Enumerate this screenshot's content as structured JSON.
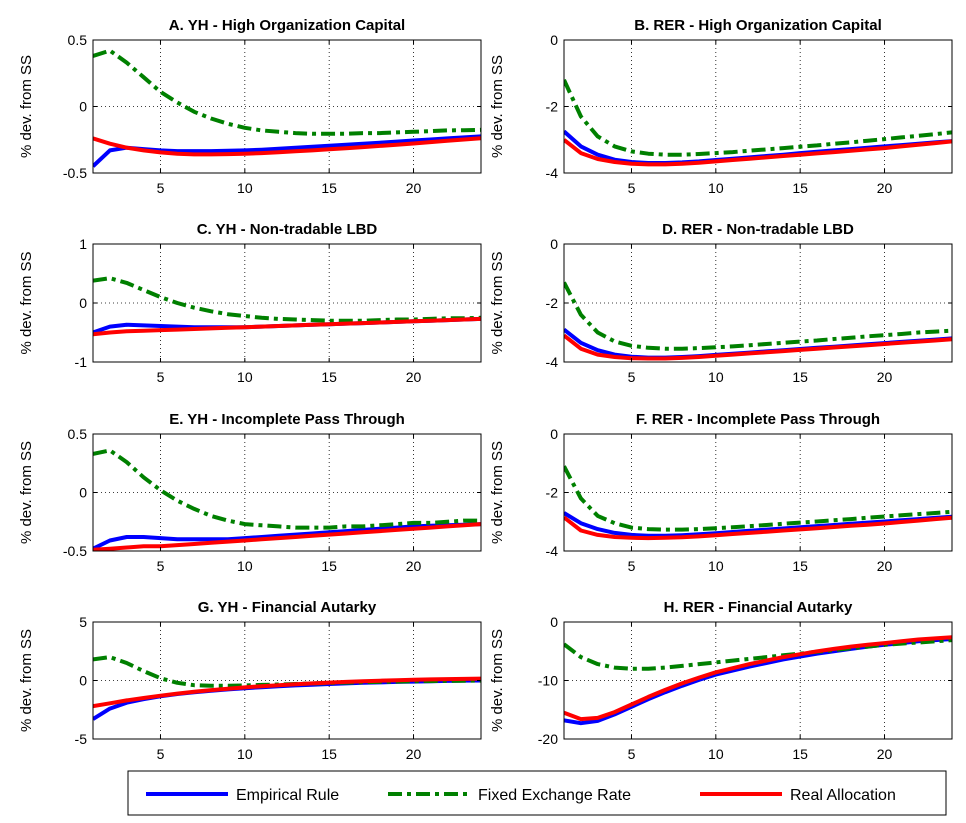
{
  "colors": {
    "empirical": "#0000ff",
    "fixed": "#008000",
    "real": "#ff0000"
  },
  "legend": {
    "empirical": "Empirical Rule",
    "fixed": "Fixed Exchange Rate",
    "real": "Real Allocation"
  },
  "chart_data": [
    {
      "type": "line",
      "panel": "A",
      "title": "A. YH - High Organization Capital",
      "ylabel": "% dev. from SS",
      "xlim": [
        1,
        24
      ],
      "ylim": [
        -0.5,
        0.5
      ],
      "xticks": [
        5,
        10,
        15,
        20
      ],
      "yticks": [
        -0.5,
        0,
        0.5
      ],
      "yticklabels": [
        "-0.5",
        "0",
        "0.5"
      ],
      "grid": true,
      "x": [
        1,
        2,
        3,
        4,
        5,
        6,
        7,
        8,
        9,
        10,
        11,
        12,
        13,
        14,
        15,
        16,
        17,
        18,
        19,
        20,
        21,
        22,
        23,
        24
      ],
      "series": [
        {
          "key": "empirical",
          "values": [
            -0.45,
            -0.33,
            -0.31,
            -0.32,
            -0.33,
            -0.335,
            -0.335,
            -0.335,
            -0.333,
            -0.33,
            -0.325,
            -0.318,
            -0.31,
            -0.302,
            -0.295,
            -0.288,
            -0.28,
            -0.272,
            -0.264,
            -0.256,
            -0.248,
            -0.24,
            -0.232,
            -0.225
          ]
        },
        {
          "key": "fixed",
          "values": [
            0.38,
            0.42,
            0.33,
            0.22,
            0.11,
            0.03,
            -0.04,
            -0.09,
            -0.13,
            -0.16,
            -0.18,
            -0.19,
            -0.2,
            -0.205,
            -0.205,
            -0.205,
            -0.2,
            -0.2,
            -0.195,
            -0.19,
            -0.185,
            -0.18,
            -0.178,
            -0.175
          ]
        },
        {
          "key": "real",
          "values": [
            -0.24,
            -0.28,
            -0.31,
            -0.33,
            -0.345,
            -0.355,
            -0.36,
            -0.36,
            -0.358,
            -0.355,
            -0.35,
            -0.344,
            -0.337,
            -0.33,
            -0.322,
            -0.314,
            -0.305,
            -0.296,
            -0.287,
            -0.278,
            -0.268,
            -0.258,
            -0.248,
            -0.238
          ]
        }
      ]
    },
    {
      "type": "line",
      "panel": "B",
      "title": "B. RER - High Organization Capital",
      "ylabel": "% dev. from SS",
      "xlim": [
        1,
        24
      ],
      "ylim": [
        -4,
        0
      ],
      "xticks": [
        5,
        10,
        15,
        20
      ],
      "yticks": [
        -4,
        -2,
        0
      ],
      "yticklabels": [
        "-4",
        "-2",
        "0"
      ],
      "grid": true,
      "x": [
        1,
        2,
        3,
        4,
        5,
        6,
        7,
        8,
        9,
        10,
        11,
        12,
        13,
        14,
        15,
        16,
        17,
        18,
        19,
        20,
        21,
        22,
        23,
        24
      ],
      "series": [
        {
          "key": "empirical",
          "values": [
            -2.75,
            -3.2,
            -3.45,
            -3.6,
            -3.67,
            -3.7,
            -3.7,
            -3.68,
            -3.65,
            -3.61,
            -3.57,
            -3.53,
            -3.49,
            -3.45,
            -3.4,
            -3.36,
            -3.32,
            -3.28,
            -3.24,
            -3.2,
            -3.16,
            -3.12,
            -3.08,
            -3.04
          ]
        },
        {
          "key": "fixed",
          "values": [
            -1.2,
            -2.3,
            -2.9,
            -3.2,
            -3.35,
            -3.42,
            -3.45,
            -3.45,
            -3.43,
            -3.4,
            -3.37,
            -3.33,
            -3.29,
            -3.25,
            -3.21,
            -3.17,
            -3.12,
            -3.08,
            -3.03,
            -2.98,
            -2.93,
            -2.88,
            -2.83,
            -2.78
          ]
        },
        {
          "key": "real",
          "values": [
            -3.0,
            -3.4,
            -3.58,
            -3.67,
            -3.72,
            -3.74,
            -3.74,
            -3.72,
            -3.69,
            -3.65,
            -3.61,
            -3.57,
            -3.53,
            -3.49,
            -3.45,
            -3.41,
            -3.37,
            -3.33,
            -3.29,
            -3.25,
            -3.2,
            -3.15,
            -3.1,
            -3.05
          ]
        }
      ]
    },
    {
      "type": "line",
      "panel": "C",
      "title": "C. YH - Non-tradable LBD",
      "ylabel": "% dev. from SS",
      "xlim": [
        1,
        24
      ],
      "ylim": [
        -1,
        1
      ],
      "xticks": [
        5,
        10,
        15,
        20
      ],
      "yticks": [
        -1,
        0,
        1
      ],
      "yticklabels": [
        "-1",
        "0",
        "1"
      ],
      "grid": true,
      "x": [
        1,
        2,
        3,
        4,
        5,
        6,
        7,
        8,
        9,
        10,
        11,
        12,
        13,
        14,
        15,
        16,
        17,
        18,
        19,
        20,
        21,
        22,
        23,
        24
      ],
      "series": [
        {
          "key": "empirical",
          "values": [
            -0.5,
            -0.4,
            -0.37,
            -0.38,
            -0.39,
            -0.4,
            -0.41,
            -0.41,
            -0.41,
            -0.41,
            -0.4,
            -0.39,
            -0.38,
            -0.37,
            -0.36,
            -0.35,
            -0.34,
            -0.33,
            -0.32,
            -0.31,
            -0.3,
            -0.29,
            -0.28,
            -0.27
          ]
        },
        {
          "key": "fixed",
          "values": [
            0.38,
            0.42,
            0.34,
            0.22,
            0.1,
            0.0,
            -0.08,
            -0.14,
            -0.19,
            -0.22,
            -0.25,
            -0.27,
            -0.28,
            -0.29,
            -0.3,
            -0.3,
            -0.3,
            -0.29,
            -0.28,
            -0.28,
            -0.27,
            -0.26,
            -0.26,
            -0.25
          ]
        },
        {
          "key": "real",
          "values": [
            -0.53,
            -0.5,
            -0.48,
            -0.47,
            -0.46,
            -0.45,
            -0.44,
            -0.43,
            -0.42,
            -0.41,
            -0.4,
            -0.39,
            -0.38,
            -0.37,
            -0.36,
            -0.35,
            -0.34,
            -0.33,
            -0.32,
            -0.31,
            -0.3,
            -0.29,
            -0.28,
            -0.27
          ]
        }
      ]
    },
    {
      "type": "line",
      "panel": "D",
      "title": "D. RER - Non-tradable LBD",
      "ylabel": "% dev. from SS",
      "xlim": [
        1,
        24
      ],
      "ylim": [
        -4,
        0
      ],
      "xticks": [
        5,
        10,
        15,
        20
      ],
      "yticks": [
        -4,
        -2,
        0
      ],
      "yticklabels": [
        "-4",
        "-2",
        "0"
      ],
      "grid": true,
      "x": [
        1,
        2,
        3,
        4,
        5,
        6,
        7,
        8,
        9,
        10,
        11,
        12,
        13,
        14,
        15,
        16,
        17,
        18,
        19,
        20,
        21,
        22,
        23,
        24
      ],
      "series": [
        {
          "key": "empirical",
          "values": [
            -2.9,
            -3.35,
            -3.6,
            -3.75,
            -3.82,
            -3.85,
            -3.85,
            -3.83,
            -3.8,
            -3.76,
            -3.72,
            -3.68,
            -3.64,
            -3.6,
            -3.56,
            -3.52,
            -3.48,
            -3.44,
            -3.4,
            -3.36,
            -3.32,
            -3.28,
            -3.24,
            -3.2
          ]
        },
        {
          "key": "fixed",
          "values": [
            -1.3,
            -2.4,
            -3.0,
            -3.3,
            -3.45,
            -3.52,
            -3.55,
            -3.55,
            -3.53,
            -3.5,
            -3.47,
            -3.43,
            -3.39,
            -3.35,
            -3.31,
            -3.27,
            -3.22,
            -3.18,
            -3.13,
            -3.09,
            -3.05,
            -3.0,
            -2.97,
            -2.94
          ]
        },
        {
          "key": "real",
          "values": [
            -3.1,
            -3.55,
            -3.75,
            -3.83,
            -3.87,
            -3.88,
            -3.88,
            -3.86,
            -3.83,
            -3.79,
            -3.75,
            -3.71,
            -3.67,
            -3.63,
            -3.59,
            -3.55,
            -3.51,
            -3.47,
            -3.43,
            -3.39,
            -3.35,
            -3.31,
            -3.27,
            -3.23
          ]
        }
      ]
    },
    {
      "type": "line",
      "panel": "E",
      "title": "E. YH - Incomplete Pass Through",
      "ylabel": "% dev. from SS",
      "xlim": [
        1,
        24
      ],
      "ylim": [
        -0.5,
        0.5
      ],
      "xticks": [
        5,
        10,
        15,
        20
      ],
      "yticks": [
        -0.5,
        0,
        0.5
      ],
      "yticklabels": [
        "-0.5",
        "0",
        "0.5"
      ],
      "grid": true,
      "x": [
        1,
        2,
        3,
        4,
        5,
        6,
        7,
        8,
        9,
        10,
        11,
        12,
        13,
        14,
        15,
        16,
        17,
        18,
        19,
        20,
        21,
        22,
        23,
        24
      ],
      "series": [
        {
          "key": "empirical",
          "values": [
            -0.48,
            -0.41,
            -0.38,
            -0.38,
            -0.39,
            -0.4,
            -0.4,
            -0.4,
            -0.4,
            -0.39,
            -0.38,
            -0.37,
            -0.36,
            -0.35,
            -0.34,
            -0.33,
            -0.32,
            -0.31,
            -0.3,
            -0.29,
            -0.285,
            -0.28,
            -0.275,
            -0.27
          ]
        },
        {
          "key": "fixed",
          "values": [
            0.33,
            0.36,
            0.26,
            0.13,
            0.02,
            -0.07,
            -0.14,
            -0.2,
            -0.24,
            -0.27,
            -0.28,
            -0.29,
            -0.3,
            -0.3,
            -0.3,
            -0.29,
            -0.29,
            -0.28,
            -0.27,
            -0.26,
            -0.26,
            -0.25,
            -0.24,
            -0.24
          ]
        },
        {
          "key": "real",
          "values": [
            -0.49,
            -0.48,
            -0.47,
            -0.46,
            -0.46,
            -0.45,
            -0.44,
            -0.43,
            -0.42,
            -0.41,
            -0.4,
            -0.39,
            -0.38,
            -0.37,
            -0.36,
            -0.35,
            -0.34,
            -0.33,
            -0.32,
            -0.31,
            -0.3,
            -0.29,
            -0.28,
            -0.27
          ]
        }
      ]
    },
    {
      "type": "line",
      "panel": "F",
      "title": "F. RER - Incomplete Pass Through",
      "ylabel": "% dev. from SS",
      "xlim": [
        1,
        24
      ],
      "ylim": [
        -4,
        0
      ],
      "xticks": [
        5,
        10,
        15,
        20
      ],
      "yticks": [
        -4,
        -2,
        0
      ],
      "yticklabels": [
        "-4",
        "-2",
        "0"
      ],
      "grid": true,
      "x": [
        1,
        2,
        3,
        4,
        5,
        6,
        7,
        8,
        9,
        10,
        11,
        12,
        13,
        14,
        15,
        16,
        17,
        18,
        19,
        20,
        21,
        22,
        23,
        24
      ],
      "series": [
        {
          "key": "empirical",
          "values": [
            -2.7,
            -3.05,
            -3.25,
            -3.38,
            -3.45,
            -3.48,
            -3.48,
            -3.46,
            -3.43,
            -3.39,
            -3.35,
            -3.31,
            -3.27,
            -3.23,
            -3.19,
            -3.15,
            -3.11,
            -3.07,
            -3.03,
            -2.99,
            -2.95,
            -2.91,
            -2.87,
            -2.83
          ]
        },
        {
          "key": "fixed",
          "values": [
            -1.1,
            -2.2,
            -2.8,
            -3.05,
            -3.2,
            -3.25,
            -3.27,
            -3.27,
            -3.25,
            -3.22,
            -3.19,
            -3.15,
            -3.11,
            -3.07,
            -3.03,
            -2.99,
            -2.95,
            -2.91,
            -2.86,
            -2.82,
            -2.78,
            -2.74,
            -2.7,
            -2.66
          ]
        },
        {
          "key": "real",
          "values": [
            -2.85,
            -3.3,
            -3.45,
            -3.52,
            -3.55,
            -3.56,
            -3.55,
            -3.53,
            -3.5,
            -3.46,
            -3.42,
            -3.38,
            -3.34,
            -3.3,
            -3.26,
            -3.22,
            -3.18,
            -3.14,
            -3.1,
            -3.06,
            -3.01,
            -2.96,
            -2.91,
            -2.86
          ]
        }
      ]
    },
    {
      "type": "line",
      "panel": "G",
      "title": "G. YH - Financial Autarky",
      "ylabel": "% dev. from SS",
      "xlim": [
        1,
        24
      ],
      "ylim": [
        -5,
        5
      ],
      "xticks": [
        5,
        10,
        15,
        20
      ],
      "yticks": [
        -5,
        0,
        5
      ],
      "yticklabels": [
        "-5",
        "0",
        "5"
      ],
      "grid": true,
      "x": [
        1,
        2,
        3,
        4,
        5,
        6,
        7,
        8,
        9,
        10,
        11,
        12,
        13,
        14,
        15,
        16,
        17,
        18,
        19,
        20,
        21,
        22,
        23,
        24
      ],
      "series": [
        {
          "key": "empirical",
          "values": [
            -3.3,
            -2.4,
            -1.9,
            -1.6,
            -1.35,
            -1.15,
            -1.0,
            -0.87,
            -0.76,
            -0.66,
            -0.57,
            -0.49,
            -0.42,
            -0.36,
            -0.3,
            -0.25,
            -0.2,
            -0.16,
            -0.12,
            -0.09,
            -0.06,
            -0.03,
            -0.01,
            0.0
          ]
        },
        {
          "key": "fixed",
          "values": [
            1.8,
            2.0,
            1.5,
            0.8,
            0.2,
            -0.2,
            -0.4,
            -0.45,
            -0.45,
            -0.42,
            -0.38,
            -0.34,
            -0.3,
            -0.26,
            -0.22,
            -0.18,
            -0.15,
            -0.12,
            -0.09,
            -0.07,
            -0.05,
            -0.03,
            -0.02,
            -0.01
          ]
        },
        {
          "key": "real",
          "values": [
            -2.2,
            -1.95,
            -1.7,
            -1.5,
            -1.3,
            -1.12,
            -0.96,
            -0.82,
            -0.7,
            -0.59,
            -0.49,
            -0.4,
            -0.32,
            -0.25,
            -0.18,
            -0.12,
            -0.07,
            -0.02,
            0.02,
            0.06,
            0.09,
            0.12,
            0.14,
            0.16
          ]
        }
      ]
    },
    {
      "type": "line",
      "panel": "H",
      "title": "H. RER - Financial Autarky",
      "ylabel": "% dev. from SS",
      "xlim": [
        1,
        24
      ],
      "ylim": [
        -20,
        0
      ],
      "xticks": [
        5,
        10,
        15,
        20
      ],
      "yticks": [
        -20,
        -10,
        0
      ],
      "yticklabels": [
        "-20",
        "-10",
        "0"
      ],
      "grid": true,
      "x": [
        1,
        2,
        3,
        4,
        5,
        6,
        7,
        8,
        9,
        10,
        11,
        12,
        13,
        14,
        15,
        16,
        17,
        18,
        19,
        20,
        21,
        22,
        23,
        24
      ],
      "series": [
        {
          "key": "empirical",
          "values": [
            -16.8,
            -17.3,
            -16.9,
            -15.8,
            -14.5,
            -13.2,
            -12.0,
            -10.9,
            -9.9,
            -9.0,
            -8.3,
            -7.6,
            -7.0,
            -6.4,
            -5.9,
            -5.4,
            -5.0,
            -4.6,
            -4.2,
            -3.9,
            -3.6,
            -3.3,
            -3.1,
            -2.9
          ]
        },
        {
          "key": "fixed",
          "values": [
            -3.8,
            -6.0,
            -7.2,
            -7.8,
            -8.0,
            -8.0,
            -7.8,
            -7.5,
            -7.2,
            -6.9,
            -6.6,
            -6.3,
            -6.0,
            -5.7,
            -5.4,
            -5.1,
            -4.8,
            -4.5,
            -4.2,
            -3.9,
            -3.7,
            -3.5,
            -3.3,
            -3.1
          ]
        },
        {
          "key": "real",
          "values": [
            -15.5,
            -16.6,
            -16.4,
            -15.4,
            -14.1,
            -12.8,
            -11.6,
            -10.5,
            -9.5,
            -8.6,
            -7.9,
            -7.2,
            -6.6,
            -6.0,
            -5.5,
            -5.0,
            -4.6,
            -4.2,
            -3.9,
            -3.6,
            -3.3,
            -3.0,
            -2.8,
            -2.6
          ]
        }
      ]
    }
  ]
}
